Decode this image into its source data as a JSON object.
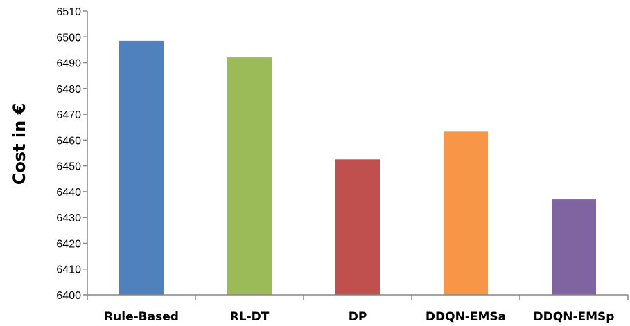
{
  "chart_data": {
    "type": "bar",
    "title": "",
    "xlabel": "",
    "ylabel": "Cost in €",
    "ylim": [
      6400,
      6510
    ],
    "ytick_step": 10,
    "grid": false,
    "legend": "none",
    "categories": [
      "Rule-Based",
      "RL-DT",
      "DP",
      "DDQN-EMSa",
      "DDQN-EMSp"
    ],
    "values": [
      6498.5,
      6492,
      6452.5,
      6463.5,
      6437
    ],
    "colors": [
      "#4F81BD",
      "#9BBB59",
      "#C0504D",
      "#F79646",
      "#8064A2"
    ]
  }
}
